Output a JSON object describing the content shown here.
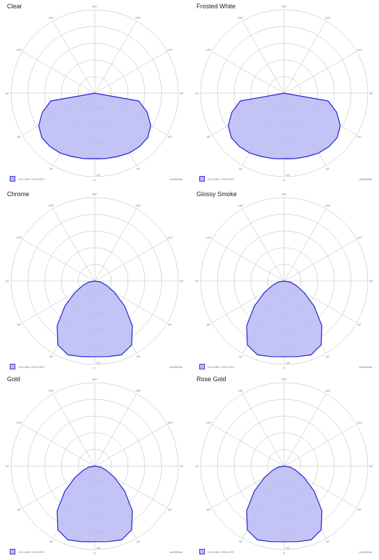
{
  "colors": {
    "fill": "#b9b9f4",
    "stroke": "#1f1fd6",
    "grid": "#b5b5b5",
    "swatch": "#b7b7f5"
  },
  "chart_data": [
    {
      "type": "polar",
      "title": "Clear",
      "legend": "C0-C180 / C90-C270",
      "unit": "cd/1000lm",
      "angular_labels": [
        "180°",
        "150°",
        "120°",
        "90°",
        "60°",
        "30°",
        "0°",
        "30°",
        "60°",
        "90°",
        "120°",
        "150°"
      ],
      "radial_labels": [
        "50",
        "100",
        "150",
        "200",
        "250"
      ],
      "rlim": [
        0,
        300
      ],
      "grid": true,
      "series": [
        {
          "angles": [
            0,
            10,
            20,
            30,
            40,
            50,
            60,
            70,
            80,
            90
          ],
          "values": [
            235,
            238,
            242,
            248,
            250,
            248,
            232,
            200,
            160,
            0
          ]
        }
      ]
    },
    {
      "type": "polar",
      "title": "Frosted White",
      "legend": "C0-C180 / C90-C270",
      "unit": "cd/1000lm",
      "angular_labels": [
        "180°",
        "150°",
        "120°",
        "90°",
        "60°",
        "30°",
        "0°",
        "30°",
        "60°",
        "90°",
        "120°",
        "150°"
      ],
      "radial_labels": [
        "50",
        "100",
        "150",
        "200",
        "250"
      ],
      "rlim": [
        0,
        300
      ],
      "grid": true,
      "series": [
        {
          "angles": [
            0,
            10,
            20,
            30,
            40,
            50,
            60,
            70,
            80,
            90
          ],
          "values": [
            235,
            238,
            242,
            248,
            250,
            248,
            232,
            200,
            160,
            0
          ]
        }
      ]
    },
    {
      "type": "polar",
      "title": "Chrome",
      "legend": "C0-C180 / C90-C270",
      "unit": "cd/1000lm",
      "angular_labels": [
        "180°",
        "150°",
        "120°",
        "90°",
        "60°",
        "30°",
        "0°",
        "30°",
        "60°",
        "90°",
        "120°",
        "150°"
      ],
      "radial_labels": [
        "50",
        "100",
        "150",
        "200",
        "250"
      ],
      "rlim": [
        0,
        300
      ],
      "grid": true,
      "series": [
        {
          "angles": [
            0,
            10,
            20,
            30,
            40,
            50,
            60,
            70,
            80,
            90
          ],
          "values": [
            272,
            276,
            282,
            265,
            210,
            140,
            82,
            45,
            22,
            0
          ]
        }
      ]
    },
    {
      "type": "polar",
      "title": "Glossy Smoke",
      "legend": "C0-C180 / C90-C270",
      "unit": "cd/1000lm",
      "angular_labels": [
        "180°",
        "150°",
        "120°",
        "90°",
        "60°",
        "30°",
        "0°",
        "30°",
        "60°",
        "90°",
        "120°",
        "150°"
      ],
      "radial_labels": [
        "50",
        "100",
        "150",
        "200",
        "250"
      ],
      "rlim": [
        0,
        300
      ],
      "grid": true,
      "series": [
        {
          "angles": [
            0,
            10,
            20,
            30,
            40,
            50,
            60,
            70,
            80,
            90
          ],
          "values": [
            272,
            276,
            282,
            265,
            210,
            140,
            82,
            45,
            22,
            0
          ]
        }
      ]
    },
    {
      "type": "polar",
      "title": "Gold",
      "legend": "C0-C180 / C90-C270",
      "unit": "cd/1000lm",
      "angular_labels": [
        "180°",
        "150°",
        "120°",
        "90°",
        "60°",
        "30°",
        "0°",
        "30°",
        "60°",
        "90°",
        "120°",
        "150°"
      ],
      "radial_labels": [
        "50",
        "100",
        "150",
        "200",
        "250"
      ],
      "rlim": [
        0,
        300
      ],
      "grid": true,
      "series": [
        {
          "angles": [
            0,
            10,
            20,
            30,
            40,
            50,
            60,
            70,
            80,
            90
          ],
          "values": [
            272,
            276,
            282,
            265,
            210,
            140,
            82,
            45,
            22,
            0
          ]
        }
      ]
    },
    {
      "type": "polar",
      "title": "Rose Gold",
      "legend": "C0-C180 / C90-C270",
      "unit": "cd/1000lm",
      "angular_labels": [
        "180°",
        "150°",
        "120°",
        "90°",
        "60°",
        "30°",
        "0°",
        "30°",
        "60°",
        "90°",
        "120°",
        "150°"
      ],
      "radial_labels": [
        "50",
        "100",
        "150",
        "200",
        "250"
      ],
      "rlim": [
        0,
        300
      ],
      "grid": true,
      "series": [
        {
          "angles": [
            0,
            10,
            20,
            30,
            40,
            50,
            60,
            70,
            80,
            90
          ],
          "values": [
            272,
            276,
            282,
            265,
            210,
            140,
            82,
            45,
            22,
            0
          ]
        }
      ]
    }
  ]
}
